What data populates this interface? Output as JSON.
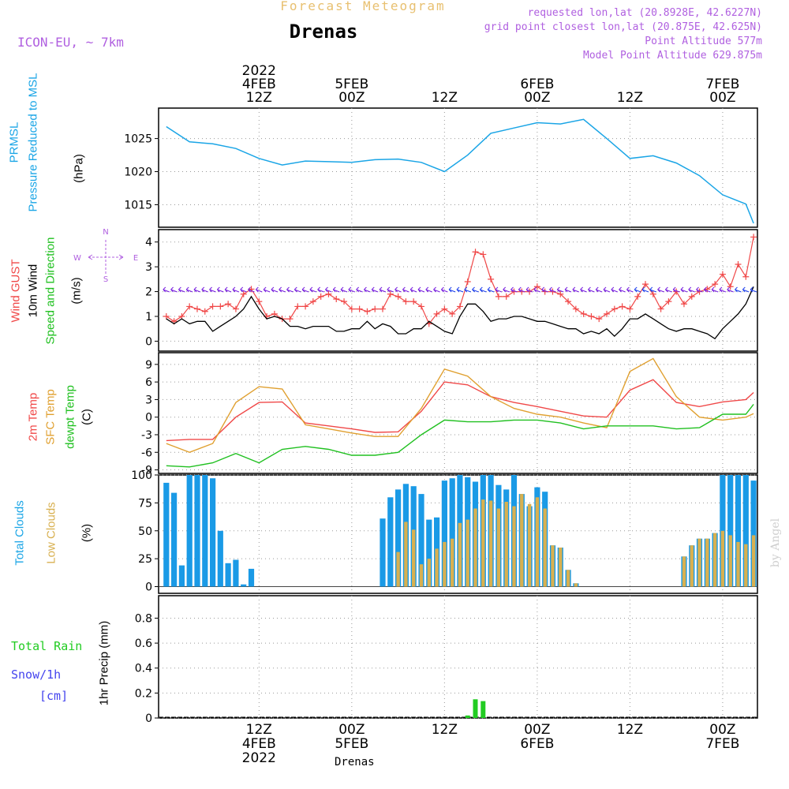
{
  "header": {
    "subtitle": "Forecast Meteogram",
    "title": "Drenas",
    "model": "ICON-EU, ~ 7km",
    "requested": "requested lon,lat (20.8928E, 42.6227N)",
    "gridpoint": "grid point closest lon,lat (20.875E, 42.625N)",
    "point_alt": "Point Altitude 577m",
    "model_alt": "Model Point Altitude 629.875m"
  },
  "time_axis": {
    "top_labels": [
      {
        "line1": "2022",
        "line2": "4FEB",
        "line3": "12Z",
        "hour": 12
      },
      {
        "line1": "",
        "line2": "5FEB",
        "line3": "00Z",
        "hour": 24
      },
      {
        "line1": "",
        "line2": "",
        "line3": "12Z",
        "hour": 36
      },
      {
        "line1": "",
        "line2": "6FEB",
        "line3": "00Z",
        "hour": 48
      },
      {
        "line1": "",
        "line2": "",
        "line3": "12Z",
        "hour": 60
      },
      {
        "line1": "",
        "line2": "7FEB",
        "line3": "00Z",
        "hour": 72
      }
    ],
    "bottom_labels": [
      {
        "line1": "12Z",
        "line2": "4FEB",
        "line3": "2022",
        "hour": 12
      },
      {
        "line1": "00Z",
        "line2": "5FEB",
        "line3": "",
        "hour": 24
      },
      {
        "line1": "12Z",
        "line2": "",
        "line3": "",
        "hour": 36
      },
      {
        "line1": "00Z",
        "line2": "6FEB",
        "line3": "",
        "hour": 48
      },
      {
        "line1": "12Z",
        "line2": "",
        "line3": "",
        "hour": 60
      },
      {
        "line1": "00Z",
        "line2": "7FEB",
        "line3": "",
        "hour": 72
      }
    ],
    "footer": "Drenas",
    "watermark": "by Angel"
  },
  "labels": {
    "prmsl": "PRMSL",
    "pressure": "Pressure Reduced to MSL",
    "hpa": "(hPa)",
    "wind_gust": "Wind GUST",
    "wind10": "10m Wind",
    "speed_dir": "Speed and Direction",
    "ms": "(m/s)",
    "compass_n": "N",
    "compass_s": "S",
    "compass_w": "W",
    "compass_e": "E",
    "temp2m": "2m Temp",
    "sfc": "SFC Temp",
    "dewpt": "dewpt Temp",
    "c": "(C)",
    "total_clouds": "Total Clouds",
    "low_clouds": "Low Clouds",
    "pct": "(%)",
    "total_rain": "Total  Rain",
    "snow": "Snow/1h",
    "cm": "[cm]",
    "precip": "1hr Precip (mm)"
  },
  "colors": {
    "pressure": "#1aa5e6",
    "gust": "#f04848",
    "wind": "#000000",
    "wind_arrow": "#7a22e0",
    "wind_arrow2": "#2244ee",
    "temp2m": "#f04848",
    "sfc": "#e0a030",
    "dewpt": "#20c020",
    "total_clouds": "#1a9ae6",
    "low_clouds": "#d8b050",
    "rain": "#22cc22",
    "snow": "#4444ee",
    "purple": "#b060e0"
  },
  "chart_data": [
    {
      "type": "line",
      "title": "PRMSL Pressure Reduced to MSL",
      "ylabel": "(hPa)",
      "ylim": [
        1011.6,
        1029.6
      ],
      "yticks": [
        "1015",
        "1020",
        "1025"
      ],
      "ytick_values": [
        1015,
        1020,
        1025
      ],
      "x_hours": [
        0,
        3,
        6,
        9,
        12,
        15,
        18,
        21,
        24,
        27,
        30,
        33,
        36,
        39,
        42,
        45,
        48,
        51,
        54,
        57,
        60,
        63,
        66,
        69,
        72,
        75,
        76
      ],
      "series": [
        {
          "name": "PRMSL",
          "values": [
            1026.8,
            1024.5,
            1024.2,
            1023.5,
            1022.0,
            1021.0,
            1021.6,
            1021.5,
            1021.4,
            1021.8,
            1021.9,
            1021.4,
            1020.0,
            1022.5,
            1025.8,
            1026.6,
            1027.4,
            1027.2,
            1027.9,
            1025.0,
            1022.0,
            1022.4,
            1021.3,
            1019.4,
            1016.5,
            1015.1,
            1012.2
          ]
        }
      ]
    },
    {
      "type": "line",
      "title": "Wind GUST / 10m Wind Speed and Direction",
      "ylabel": "(m/s)",
      "ylim": [
        -0.4,
        4.5
      ],
      "yticks": [
        "0",
        "1",
        "2",
        "3",
        "4"
      ],
      "ytick_values": [
        0,
        1,
        2,
        3,
        4
      ],
      "x_hours": [
        0,
        1,
        2,
        3,
        4,
        5,
        6,
        7,
        8,
        9,
        10,
        11,
        12,
        13,
        14,
        15,
        16,
        17,
        18,
        19,
        20,
        21,
        22,
        23,
        24,
        25,
        26,
        27,
        28,
        29,
        30,
        31,
        32,
        33,
        34,
        35,
        36,
        37,
        38,
        39,
        40,
        41,
        42,
        43,
        44,
        45,
        46,
        47,
        48,
        49,
        50,
        51,
        52,
        53,
        54,
        55,
        56,
        57,
        58,
        59,
        60,
        61,
        62,
        63,
        64,
        65,
        66,
        67,
        68,
        69,
        70,
        71,
        72,
        73,
        74,
        75,
        76
      ],
      "series": [
        {
          "name": "Wind GUST",
          "values": [
            1.0,
            0.8,
            1.0,
            1.4,
            1.3,
            1.2,
            1.4,
            1.4,
            1.5,
            1.3,
            1.9,
            2.1,
            1.6,
            1.0,
            1.1,
            0.9,
            0.9,
            1.4,
            1.4,
            1.6,
            1.8,
            1.9,
            1.7,
            1.6,
            1.3,
            1.3,
            1.2,
            1.3,
            1.3,
            1.9,
            1.8,
            1.6,
            1.6,
            1.4,
            0.7,
            1.1,
            1.3,
            1.1,
            1.4,
            2.4,
            3.6,
            3.5,
            2.5,
            1.8,
            1.8,
            2.0,
            2.0,
            2.0,
            2.2,
            2.0,
            2.0,
            1.9,
            1.6,
            1.3,
            1.1,
            1.0,
            0.9,
            1.1,
            1.3,
            1.4,
            1.3,
            1.8,
            2.3,
            1.9,
            1.3,
            1.6,
            2.0,
            1.5,
            1.8,
            2.0,
            2.1,
            2.3,
            2.7,
            2.2,
            3.1,
            2.6,
            4.2
          ]
        },
        {
          "name": "10m Wind",
          "values": [
            0.9,
            0.7,
            0.9,
            0.7,
            0.8,
            0.8,
            0.4,
            0.6,
            0.8,
            1.0,
            1.3,
            1.8,
            1.3,
            0.9,
            1.0,
            0.9,
            0.6,
            0.6,
            0.5,
            0.6,
            0.6,
            0.6,
            0.4,
            0.4,
            0.5,
            0.5,
            0.8,
            0.5,
            0.7,
            0.6,
            0.3,
            0.3,
            0.5,
            0.5,
            0.8,
            0.6,
            0.4,
            0.3,
            1.0,
            1.5,
            1.5,
            1.2,
            0.8,
            0.9,
            0.9,
            1.0,
            1.0,
            0.9,
            0.8,
            0.8,
            0.7,
            0.6,
            0.5,
            0.5,
            0.3,
            0.4,
            0.3,
            0.5,
            0.2,
            0.5,
            0.9,
            0.9,
            1.1,
            0.9,
            0.7,
            0.5,
            0.4,
            0.5,
            0.5,
            0.4,
            0.3,
            0.1,
            0.5,
            0.8,
            1.1,
            1.5,
            2.2
          ]
        }
      ]
    },
    {
      "type": "line",
      "title": "2m Temp / SFC Temp / dewpt Temp",
      "ylabel": "(C)",
      "ylim": [
        -9.6,
        11.0
      ],
      "yticks": [
        "-9",
        "-6",
        "-3",
        "0",
        "3",
        "6",
        "9"
      ],
      "ytick_values": [
        -9,
        -6,
        -3,
        0,
        3,
        6,
        9
      ],
      "x_hours": [
        0,
        3,
        6,
        9,
        12,
        15,
        18,
        21,
        24,
        27,
        30,
        33,
        36,
        39,
        42,
        45,
        48,
        51,
        54,
        57,
        60,
        63,
        66,
        69,
        72,
        75,
        76
      ],
      "series": [
        {
          "name": "2m Temp",
          "values": [
            -4.0,
            -3.8,
            -3.8,
            0.0,
            2.5,
            2.6,
            -1.0,
            -1.5,
            -2.0,
            -2.6,
            -2.5,
            1.0,
            6.0,
            5.5,
            3.5,
            2.5,
            1.8,
            1.0,
            0.2,
            0.0,
            4.6,
            6.4,
            2.5,
            1.8,
            2.6,
            3.0,
            4.2
          ]
        },
        {
          "name": "SFC Temp",
          "values": [
            -4.5,
            -6.0,
            -4.5,
            2.5,
            5.2,
            4.8,
            -1.3,
            -2.0,
            -2.7,
            -3.3,
            -3.3,
            1.5,
            8.2,
            7.0,
            3.5,
            1.5,
            0.5,
            0.0,
            -1.0,
            -1.8,
            7.8,
            10.0,
            3.5,
            0.0,
            -0.5,
            0.0,
            0.6
          ]
        },
        {
          "name": "dewpt Temp",
          "values": [
            -8.3,
            -8.5,
            -7.8,
            -6.2,
            -7.8,
            -5.5,
            -5.0,
            -5.5,
            -6.5,
            -6.5,
            -6.0,
            -3.0,
            -0.5,
            -0.8,
            -0.8,
            -0.5,
            -0.5,
            -1.0,
            -2.0,
            -1.5,
            -1.5,
            -1.5,
            -2.0,
            -1.8,
            0.5,
            0.5,
            2.2
          ]
        }
      ]
    },
    {
      "type": "bar",
      "title": "Total Clouds / Low Clouds",
      "ylabel": "(%)",
      "ylim": [
        -6,
        100
      ],
      "yticks": [
        "0",
        "25",
        "50",
        "75",
        "100"
      ],
      "ytick_values": [
        0,
        25,
        50,
        75,
        100
      ],
      "x_hours": [
        0,
        1,
        2,
        3,
        4,
        5,
        6,
        7,
        8,
        9,
        10,
        11,
        12,
        13,
        14,
        15,
        16,
        17,
        18,
        19,
        20,
        21,
        22,
        23,
        24,
        25,
        26,
        27,
        28,
        29,
        30,
        31,
        32,
        33,
        34,
        35,
        36,
        37,
        38,
        39,
        40,
        41,
        42,
        43,
        44,
        45,
        46,
        47,
        48,
        49,
        50,
        51,
        52,
        53,
        54,
        55,
        56,
        57,
        58,
        59,
        60,
        61,
        62,
        63,
        64,
        65,
        66,
        67,
        68,
        69,
        70,
        71,
        72,
        73,
        74,
        75,
        76
      ],
      "series": [
        {
          "name": "Total Clouds",
          "values": [
            93,
            84,
            19,
            100,
            100,
            100,
            97,
            50,
            21,
            24,
            2,
            16,
            0,
            0,
            0,
            0,
            0,
            0,
            0,
            0,
            0,
            0,
            0,
            0,
            0,
            0,
            0,
            0,
            61,
            80,
            87,
            92,
            90,
            83,
            60,
            62,
            95,
            97,
            100,
            98,
            94,
            100,
            100,
            91,
            87,
            100,
            83,
            72,
            89,
            85,
            37,
            35,
            15,
            3,
            0,
            0,
            0,
            0,
            0,
            0,
            0,
            0,
            0,
            0,
            0,
            0,
            0,
            27,
            37,
            43,
            43,
            48,
            100,
            100,
            100,
            100,
            95
          ]
        },
        {
          "name": "Low Clouds",
          "values": [
            0,
            0,
            0,
            0,
            0,
            0,
            0,
            0,
            0,
            0,
            0,
            0,
            0,
            0,
            0,
            0,
            0,
            0,
            0,
            0,
            0,
            0,
            0,
            0,
            0,
            0,
            0,
            0,
            0,
            0,
            31,
            58,
            51,
            20,
            25,
            34,
            40,
            43,
            57,
            60,
            70,
            78,
            77,
            70,
            76,
            72,
            83,
            74,
            80,
            70,
            37,
            35,
            15,
            3,
            0,
            0,
            0,
            0,
            0,
            0,
            0,
            0,
            0,
            0,
            0,
            0,
            0,
            27,
            37,
            43,
            43,
            48,
            50,
            46,
            40,
            38,
            46
          ]
        }
      ]
    },
    {
      "type": "bar",
      "title": "1hr Precip",
      "ylabel": "1hr Precip (mm)",
      "ylim": [
        0,
        0.98
      ],
      "yticks": [
        "0",
        "0.2",
        "0.4",
        "0.6",
        "0.8"
      ],
      "ytick_values": [
        0,
        0.2,
        0.4,
        0.6,
        0.8
      ],
      "x_hours": [
        39,
        40,
        41
      ],
      "series": [
        {
          "name": "Total Rain",
          "values": [
            0.02,
            0.15,
            0.135
          ]
        }
      ]
    }
  ]
}
